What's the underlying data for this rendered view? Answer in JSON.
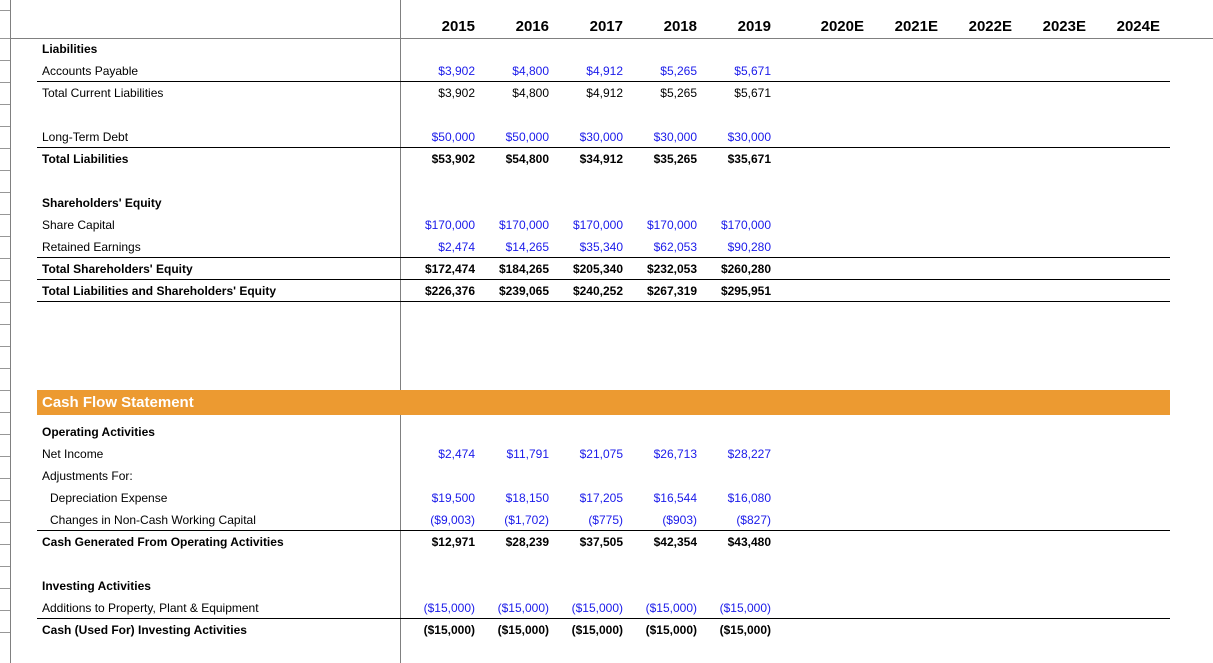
{
  "colors": {
    "input_blue": "#1a1aea",
    "accent_orange": "#ec9a31",
    "grid_gray": "#808080"
  },
  "header": {
    "years": [
      "2015",
      "2016",
      "2017",
      "2018",
      "2019",
      "2020E",
      "2021E",
      "2022E",
      "2023E",
      "2024E"
    ]
  },
  "balance_sheet": {
    "rows": [
      {
        "label": "Liabilities"
      },
      {
        "label": "Accounts Payable",
        "values": [
          "$3,902",
          "$4,800",
          "$4,912",
          "$5,265",
          "$5,671"
        ]
      },
      {
        "label": "Total Current Liabilities",
        "values": [
          "$3,902",
          "$4,800",
          "$4,912",
          "$5,265",
          "$5,671"
        ]
      },
      {
        "label": ""
      },
      {
        "label": "Long-Term Debt",
        "values": [
          "$50,000",
          "$50,000",
          "$30,000",
          "$30,000",
          "$30,000"
        ]
      },
      {
        "label": "Total Liabilities",
        "values": [
          "$53,902",
          "$54,800",
          "$34,912",
          "$35,265",
          "$35,671"
        ]
      },
      {
        "label": ""
      },
      {
        "label": "Shareholders' Equity"
      },
      {
        "label": "Share Capital",
        "values": [
          "$170,000",
          "$170,000",
          "$170,000",
          "$170,000",
          "$170,000"
        ]
      },
      {
        "label": "Retained Earnings",
        "values": [
          "$2,474",
          "$14,265",
          "$35,340",
          "$62,053",
          "$90,280"
        ]
      },
      {
        "label": "Total Shareholders' Equity",
        "values": [
          "$172,474",
          "$184,265",
          "$205,340",
          "$232,053",
          "$260,280"
        ]
      },
      {
        "label": "Total Liabilities and Shareholders' Equity",
        "values": [
          "$226,376",
          "$239,065",
          "$240,252",
          "$267,319",
          "$295,951"
        ]
      }
    ]
  },
  "cash_flow": {
    "title": "Cash Flow Statement",
    "rows": [
      {
        "label": "Operating Activities"
      },
      {
        "label": "Net Income",
        "values": [
          "$2,474",
          "$11,791",
          "$21,075",
          "$26,713",
          "$28,227"
        ]
      },
      {
        "label": "Adjustments For:"
      },
      {
        "label": "Depreciation Expense",
        "values": [
          "$19,500",
          "$18,150",
          "$17,205",
          "$16,544",
          "$16,080"
        ]
      },
      {
        "label": "Changes in Non-Cash Working Capital",
        "values": [
          "($9,003)",
          "($1,702)",
          "($775)",
          "($903)",
          "($827)"
        ]
      },
      {
        "label": "Cash Generated From Operating Activities",
        "values": [
          "$12,971",
          "$28,239",
          "$37,505",
          "$42,354",
          "$43,480"
        ]
      },
      {
        "label": ""
      },
      {
        "label": "Investing Activities"
      },
      {
        "label": "Additions to Property, Plant &  Equipment",
        "values": [
          "($15,000)",
          "($15,000)",
          "($15,000)",
          "($15,000)",
          "($15,000)"
        ]
      },
      {
        "label": "Cash (Used For) Investing Activities",
        "values": [
          "($15,000)",
          "($15,000)",
          "($15,000)",
          "($15,000)",
          "($15,000)"
        ]
      }
    ]
  }
}
